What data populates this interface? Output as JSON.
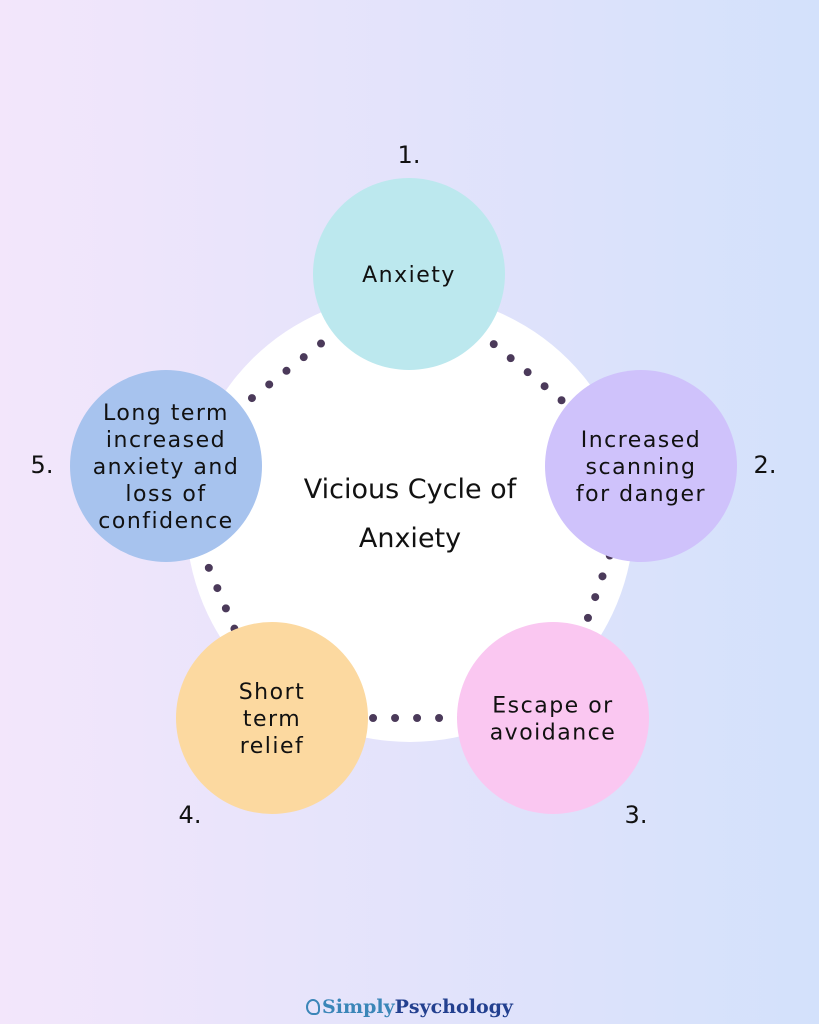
{
  "title_lines": [
    "Vicious Cycle of",
    "Anxiety"
  ],
  "nodes": [
    {
      "number": "1.",
      "lines": [
        "Anxiety"
      ],
      "color": "#bce8ee"
    },
    {
      "number": "2.",
      "lines": [
        "Increased",
        "scanning",
        "for danger"
      ],
      "color": "#cfc2fb"
    },
    {
      "number": "3.",
      "lines": [
        "Escape or",
        "avoidance"
      ],
      "color": "#fac7f1"
    },
    {
      "number": "4.",
      "lines": [
        "Short",
        "term",
        "relief"
      ],
      "color": "#fcd9a0"
    },
    {
      "number": "5.",
      "lines": [
        "Long term",
        "increased",
        "anxiety and",
        "loss of",
        "confidence"
      ],
      "color": "#a7c3ee"
    }
  ],
  "dot_color": "#4b3a5a",
  "logo": {
    "part1": "Simply",
    "part2": "Psychology"
  }
}
